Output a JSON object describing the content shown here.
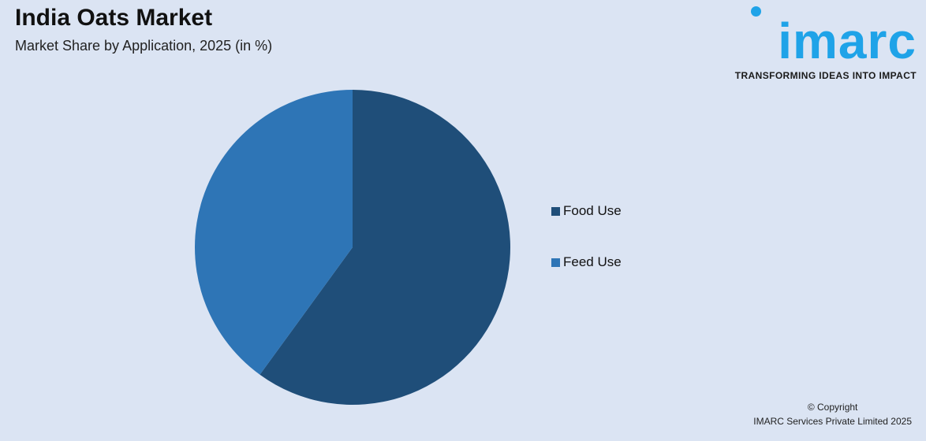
{
  "header": {
    "title": "India Oats Market",
    "subtitle": "Market Share by Application, 2025 (in %)"
  },
  "logo": {
    "wordmark": "imarc",
    "tagline": "TRANSFORMING IDEAS INTO IMPACT",
    "color": "#1fa3e8"
  },
  "chart_data": {
    "type": "pie",
    "title": "India Oats Market",
    "subtitle": "Market Share by Application, 2025 (in %)",
    "categories": [
      "Food Use",
      "Feed Use"
    ],
    "values": [
      60,
      40
    ],
    "colors": [
      "#1f4e79",
      "#2e75b6"
    ],
    "legend": "right"
  },
  "footer": {
    "line1": "© Copyright",
    "line2": "IMARC Services Private Limited 2025"
  }
}
